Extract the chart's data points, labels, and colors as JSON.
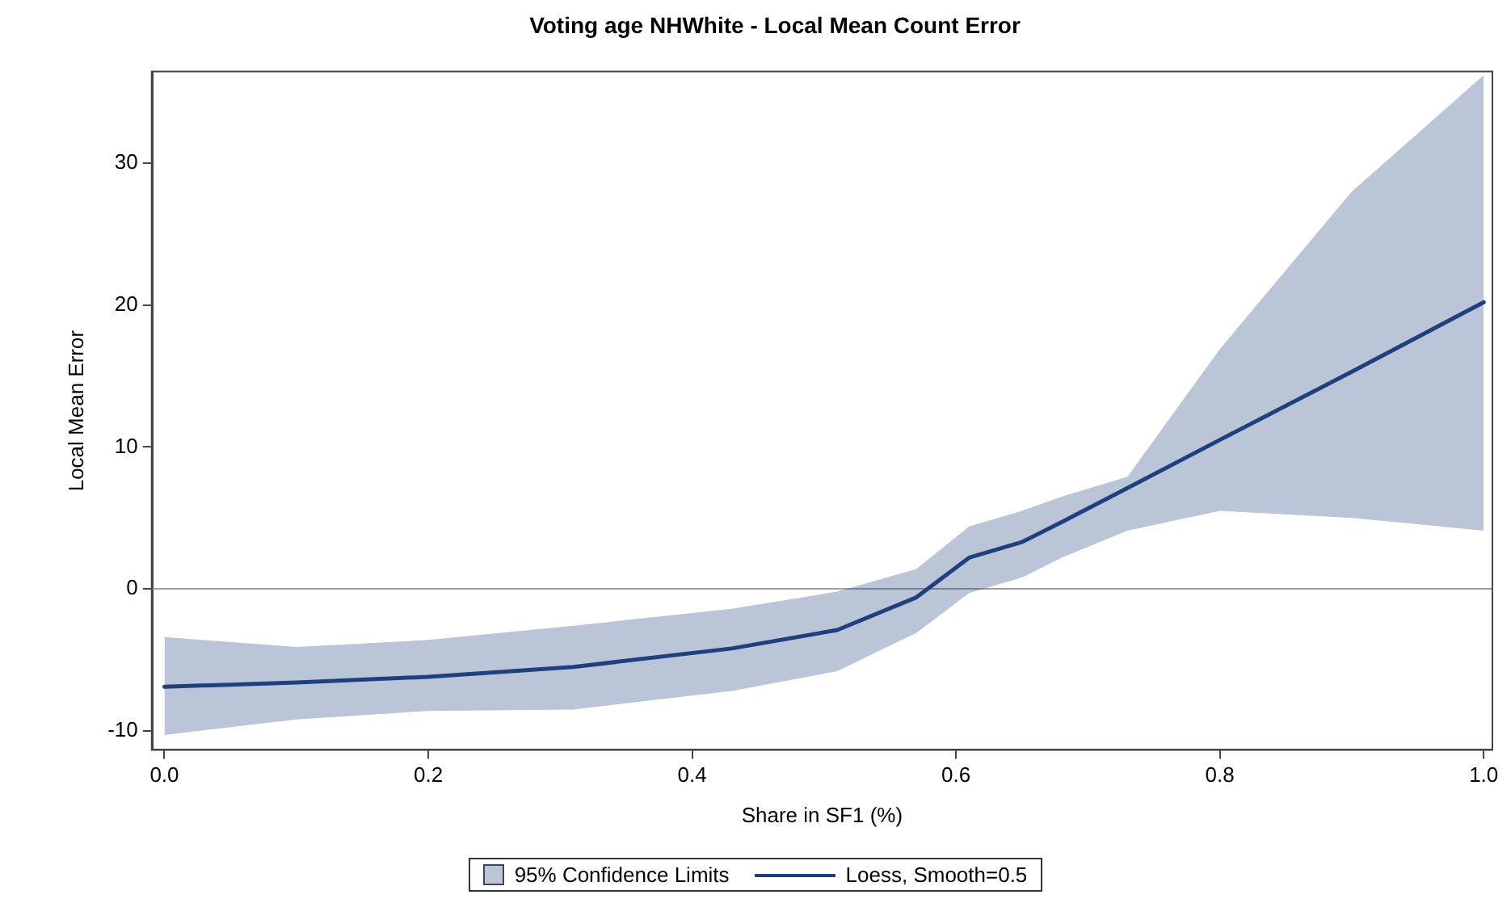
{
  "chart_data": {
    "type": "line",
    "title": "Voting age NHWhite - Local Mean Count Error",
    "xlabel": "Share in SF1 (%)",
    "ylabel": "Local Mean Error",
    "x": [
      0,
      0.1,
      0.2,
      0.31,
      0.43,
      0.51,
      0.57,
      0.61,
      0.65,
      0.68,
      0.73,
      0.8,
      0.9,
      1.0
    ],
    "series": [
      {
        "name": "Loess, Smooth=0.5",
        "type": "line",
        "color": "#1f3f7f",
        "values": [
          -6.9,
          -6.6,
          -6.2,
          -5.5,
          -4.2,
          -2.9,
          -0.6,
          2.2,
          3.3,
          4.7,
          7.1,
          10.5,
          15.3,
          20.2
        ],
        "lower": [
          -10.3,
          -9.2,
          -8.6,
          -8.5,
          -7.2,
          -5.8,
          -3.1,
          -0.3,
          0.8,
          2.2,
          4.1,
          5.5,
          5.0,
          4.1
        ],
        "upper": [
          -3.4,
          -4.1,
          -3.6,
          -2.6,
          -1.4,
          -0.2,
          1.4,
          4.4,
          5.5,
          6.5,
          7.9,
          16.9,
          28.0,
          36.2
        ]
      }
    ],
    "annotations": [
      "95% Confidence Limits"
    ],
    "xlim": [
      -0.009,
      1.006
    ],
    "xticks": [
      {
        "value": 0,
        "label": "0.0"
      },
      {
        "value": 0.2,
        "label": "0.2"
      },
      {
        "value": 0.4,
        "label": "0.4"
      },
      {
        "value": 0.6,
        "label": "0.6"
      },
      {
        "value": 0.8,
        "label": "0.8"
      },
      {
        "value": 1.0,
        "label": "1.0"
      }
    ],
    "ylim": [
      -11.3,
      36.4
    ],
    "yticks": [
      -10,
      0,
      10,
      20,
      30
    ],
    "ref_lines": [
      {
        "axis": "y",
        "value": 0,
        "color": "#a0a0a0"
      }
    ],
    "grid": false,
    "legend": "bottom",
    "marker": "none",
    "line_style": "solid"
  }
}
